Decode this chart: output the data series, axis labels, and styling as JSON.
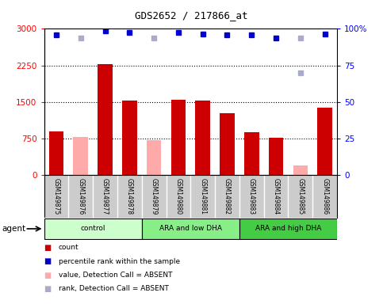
{
  "title": "GDS2652 / 217866_at",
  "samples": [
    "GSM149875",
    "GSM149876",
    "GSM149877",
    "GSM149878",
    "GSM149879",
    "GSM149880",
    "GSM149881",
    "GSM149882",
    "GSM149883",
    "GSM149884",
    "GSM149885",
    "GSM149886"
  ],
  "bar_values": [
    900,
    0,
    2270,
    1520,
    0,
    1540,
    1520,
    1270,
    880,
    760,
    0,
    1380
  ],
  "bar_absent_values": [
    0,
    780,
    0,
    0,
    710,
    0,
    0,
    0,
    0,
    0,
    200,
    0
  ],
  "bar_color_present": "#cc0000",
  "bar_color_absent": "#ffaaaa",
  "dot_values_present": [
    2880,
    0,
    2960,
    2920,
    0,
    2920,
    2900,
    2880,
    2880,
    2820,
    0,
    2900
  ],
  "dot_values_absent_rank": [
    0,
    2820,
    0,
    0,
    2820,
    0,
    0,
    0,
    0,
    0,
    2820,
    0
  ],
  "dot_absent_rank_special": [
    0,
    0,
    0,
    0,
    0,
    0,
    0,
    0,
    0,
    0,
    2100,
    0
  ],
  "dot_color_present": "#0000cc",
  "dot_color_absent": "#aaaacc",
  "ylim_left": [
    0,
    3000
  ],
  "ylim_right": [
    0,
    100
  ],
  "yticks_left": [
    0,
    750,
    1500,
    2250,
    3000
  ],
  "yticks_right": [
    0,
    25,
    50,
    75,
    100
  ],
  "groups": [
    {
      "label": "control",
      "start": 0,
      "end": 4,
      "color": "#ccffcc"
    },
    {
      "label": "ARA and low DHA",
      "start": 4,
      "end": 8,
      "color": "#88ee88"
    },
    {
      "label": "ARA and high DHA",
      "start": 8,
      "end": 12,
      "color": "#44cc44"
    }
  ],
  "legend_items": [
    {
      "label": "count",
      "color": "#cc0000"
    },
    {
      "label": "percentile rank within the sample",
      "color": "#0000cc"
    },
    {
      "label": "value, Detection Call = ABSENT",
      "color": "#ffaaaa"
    },
    {
      "label": "rank, Detection Call = ABSENT",
      "color": "#aaaacc"
    }
  ],
  "agent_label": "agent",
  "bg_color": "#ffffff",
  "label_area_color": "#cccccc",
  "bar_width": 0.6
}
